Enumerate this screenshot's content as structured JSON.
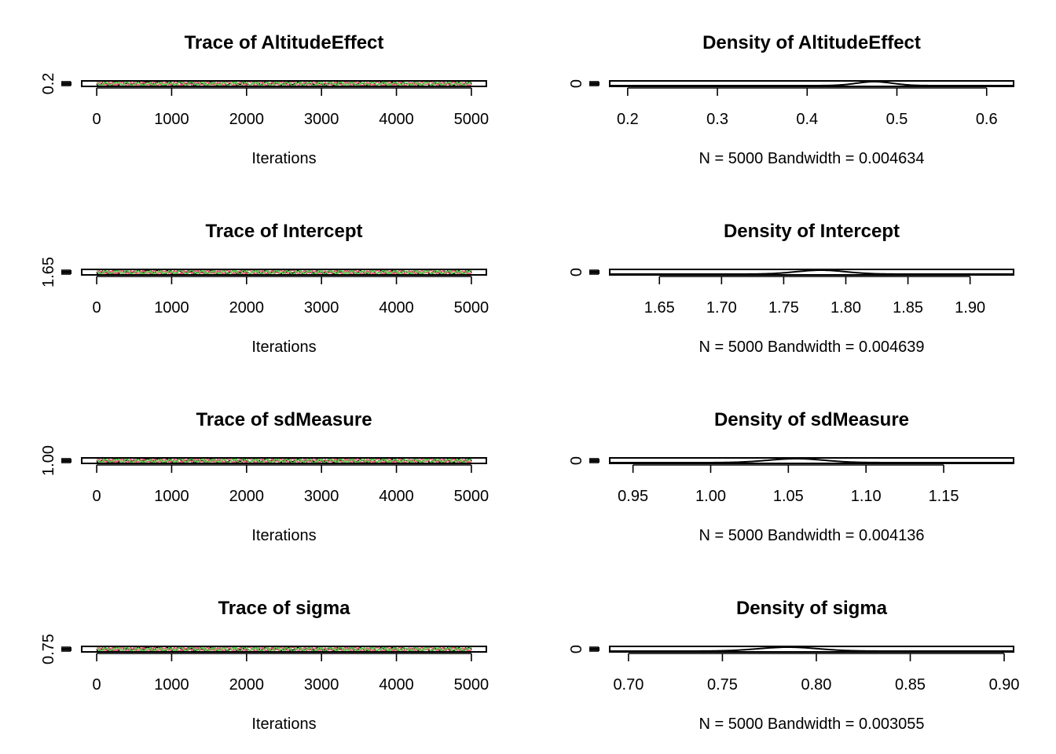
{
  "chart_data": [
    {
      "type": "line",
      "title": "Trace of AltitudeEffect",
      "xlabel": "Iterations",
      "ylabel": "",
      "x_ticks": [
        0,
        1000,
        2000,
        3000,
        4000,
        5000
      ],
      "y_ticks": [
        "0.2"
      ],
      "xlim": [
        -200,
        5200
      ],
      "series_colors": [
        "#000000",
        "#DF536B",
        "#61D04F"
      ]
    },
    {
      "type": "line",
      "title": "Density of AltitudeEffect",
      "xlabel": "N = 5000   Bandwidth = 0.004634",
      "ylabel": "",
      "x_ticks": [
        "0.2",
        "0.3",
        "0.4",
        "0.5",
        "0.6"
      ],
      "y_ticks": [
        "0"
      ],
      "xlim": [
        0.18,
        0.63
      ],
      "peak_x": 0.475,
      "spread": 0.02
    },
    {
      "type": "line",
      "title": "Trace of Intercept",
      "xlabel": "Iterations",
      "ylabel": "",
      "x_ticks": [
        0,
        1000,
        2000,
        3000,
        4000,
        5000
      ],
      "y_ticks": [
        "1.65"
      ],
      "xlim": [
        -200,
        5200
      ],
      "series_colors": [
        "#000000",
        "#DF536B",
        "#61D04F"
      ]
    },
    {
      "type": "line",
      "title": "Density of Intercept",
      "xlabel": "N = 5000   Bandwidth = 0.004639",
      "ylabel": "",
      "x_ticks": [
        "1.65",
        "1.70",
        "1.75",
        "1.80",
        "1.85",
        "1.90"
      ],
      "y_ticks": [
        "0"
      ],
      "xlim": [
        1.61,
        1.935
      ],
      "peak_x": 1.78,
      "spread": 0.02
    },
    {
      "type": "line",
      "title": "Trace of sdMeasure",
      "xlabel": "Iterations",
      "ylabel": "",
      "x_ticks": [
        0,
        1000,
        2000,
        3000,
        4000,
        5000
      ],
      "y_ticks": [
        "1.00"
      ],
      "xlim": [
        -200,
        5200
      ],
      "series_colors": [
        "#000000",
        "#DF536B",
        "#61D04F"
      ]
    },
    {
      "type": "line",
      "title": "Density of sdMeasure",
      "xlabel": "N = 5000   Bandwidth = 0.004136",
      "ylabel": "",
      "x_ticks": [
        "0.95",
        "1.00",
        "1.05",
        "1.10",
        "1.15"
      ],
      "y_ticks": [
        "0"
      ],
      "xlim": [
        0.935,
        1.195
      ],
      "peak_x": 1.055,
      "spread": 0.018
    },
    {
      "type": "line",
      "title": "Trace of sigma",
      "xlabel": "Iterations",
      "ylabel": "",
      "x_ticks": [
        0,
        1000,
        2000,
        3000,
        4000,
        5000
      ],
      "y_ticks": [
        "0.75"
      ],
      "xlim": [
        -200,
        5200
      ],
      "series_colors": [
        "#000000",
        "#DF536B",
        "#61D04F"
      ]
    },
    {
      "type": "line",
      "title": "Density of sigma",
      "xlabel": "N = 5000   Bandwidth = 0.003055",
      "ylabel": "",
      "x_ticks": [
        "0.70",
        "0.75",
        "0.80",
        "0.85",
        "0.90"
      ],
      "y_ticks": [
        "0"
      ],
      "xlim": [
        0.69,
        0.905
      ],
      "peak_x": 0.785,
      "spread": 0.016
    }
  ]
}
